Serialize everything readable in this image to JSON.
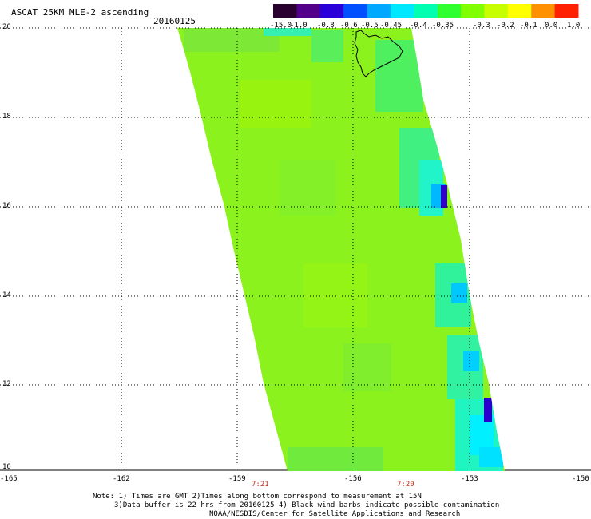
{
  "header": {
    "title": "ASCAT 25KM MLE-2 ascending",
    "date": "20160125"
  },
  "colorbar": {
    "labels": [
      "-15.0",
      "-1.0",
      "-0.8",
      "-0.6",
      "-0.5",
      "-0.45",
      "-0.4",
      "-0.35",
      "-0.3",
      "-0.2",
      "-0.1",
      "0.0",
      "1.0"
    ],
    "colors": [
      "#2a0030",
      "#50008a",
      "#2a00d8",
      "#0050ff",
      "#00a8ff",
      "#00e8ff",
      "#00ffb0",
      "#30ff30",
      "#80ff00",
      "#c8ff00",
      "#ffff00",
      "#ff9000",
      "#ff2000"
    ]
  },
  "axes": {
    "lat_labels": [
      "20",
      "18",
      "16",
      "14",
      "12",
      "10"
    ],
    "lon_labels": [
      "-165",
      "-162",
      "-159",
      "-156",
      "-153",
      "-150"
    ]
  },
  "times": [
    "7:21",
    "7:20"
  ],
  "notes": [
    "Note: 1) Times are GMT 2)Times along bottom correspond to measurement at 15N",
    "3)Data buffer is 22 hrs from 20160125 4) Black wind barbs indicate possible contamination",
    "NOAA/NESDIS/Center for Satellite Applications and Research"
  ]
}
